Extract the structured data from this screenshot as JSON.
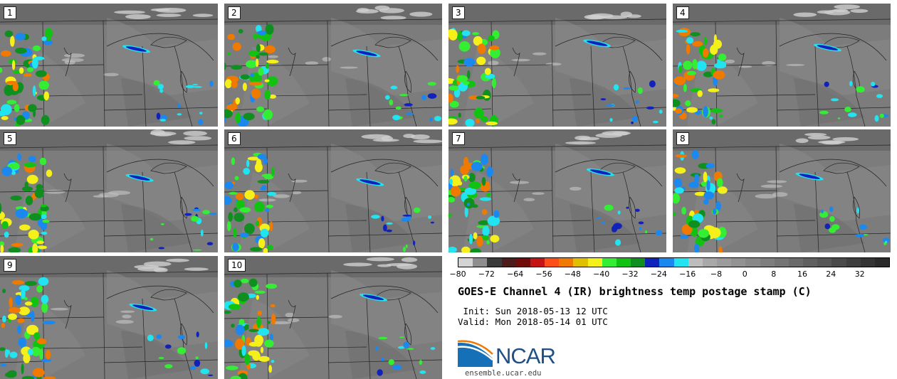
{
  "panels": [
    {
      "label": "1"
    },
    {
      "label": "2"
    },
    {
      "label": "3"
    },
    {
      "label": "4"
    },
    {
      "label": "5"
    },
    {
      "label": "6"
    },
    {
      "label": "7"
    },
    {
      "label": "8"
    },
    {
      "label": "9"
    },
    {
      "label": "10"
    }
  ],
  "colorbar": {
    "colors": [
      "#d3d3d3",
      "#8e8e8e",
      "#3a3a3a",
      "#4e1b1b",
      "#730b0b",
      "#c41414",
      "#ff4d1a",
      "#f07a00",
      "#e0c000",
      "#f5f01a",
      "#33ee33",
      "#12c212",
      "#0f8f1f",
      "#1122bb",
      "#1a88ee",
      "#22e3f0",
      "#bdbdbd",
      "#a8a8a8",
      "#9c9c9c",
      "#929292",
      "#888888",
      "#7e7e7e",
      "#747474",
      "#6a6a6a",
      "#606060",
      "#565656",
      "#4a4a4a",
      "#3f3f3f",
      "#343434",
      "#2a2a2a"
    ],
    "ticks": [
      "−80",
      "−72",
      "−64",
      "−56",
      "−48",
      "−40",
      "−32",
      "−24",
      "−16",
      "−8",
      "0",
      "8",
      "16",
      "24",
      "32"
    ]
  },
  "title": "GOES-E Channel 4 (IR) brightness temp postage stamp (C)",
  "init": " Init: Sun 2018-05-13 12 UTC",
  "valid": "Valid: Mon 2018-05-14 01 UTC",
  "logo": {
    "text": "NCAR",
    "url": "ensemble.ucar.edu",
    "color": "#1f4f85"
  }
}
